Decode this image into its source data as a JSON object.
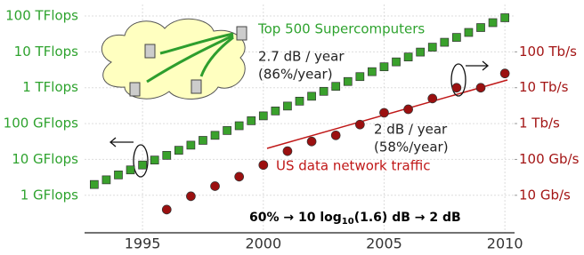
{
  "chart_data": {
    "type": "scatter",
    "series": [
      {
        "name": "Top 500 Supercomputers",
        "color": "#3aa12c",
        "x": [
          1993,
          1993.5,
          1994,
          1994.5,
          1995,
          1995.5,
          1996,
          1996.5,
          1997,
          1997.5,
          1998,
          1998.5,
          1999,
          1999.5,
          2000,
          2000.5,
          2001,
          2001.5,
          2002,
          2002.5,
          2003,
          2003.5,
          2004,
          2004.5,
          2005,
          2005.5,
          2006,
          2006.5,
          2007,
          2007.5,
          2008,
          2008.5,
          2009,
          2009.5,
          2010
        ],
        "values": [
          2.0,
          2.7,
          3.7,
          5.1,
          7.0,
          9.6,
          13,
          18,
          25,
          34,
          47,
          64,
          87,
          120,
          164,
          225,
          308,
          422,
          578,
          793,
          1090,
          1490,
          2040,
          2800,
          3830,
          5250,
          7190,
          9860,
          13500,
          18500,
          25300,
          34800,
          47600,
          65200,
          89300
        ]
      },
      {
        "name": "US data network traffic",
        "color": "#9b1010",
        "axis": "y2",
        "x": [
          1996,
          1997,
          1998,
          1999,
          2000,
          2001,
          2002,
          2003,
          2004,
          2005,
          2006,
          2007,
          2008,
          2009,
          2010
        ],
        "values": [
          4,
          9.4,
          18,
          33,
          70,
          170,
          316,
          470,
          940,
          2000,
          2500,
          5000,
          10000,
          10000,
          25000
        ]
      }
    ],
    "xlim": [
      1992.6,
      2010.4
    ],
    "xticks": [
      1995,
      2000,
      2005,
      2010
    ],
    "ylim": [
      0.09,
      210000
    ],
    "log_y": true,
    "yticks": [
      {
        "value": 1,
        "label": "1 GFlops"
      },
      {
        "value": 10,
        "label": "10 GFlops"
      },
      {
        "value": 100,
        "label": "100 GFlops"
      },
      {
        "value": 1000,
        "label": "1 TFlops"
      },
      {
        "value": 10000,
        "label": "10 TFlops"
      },
      {
        "value": 100000,
        "label": "100 TFlops"
      }
    ],
    "y2lim": [
      0.9,
      2100000
    ],
    "y2ticks": [
      {
        "value": 10,
        "label": "10 Gb/s"
      },
      {
        "value": 100,
        "label": "100 Gb/s"
      },
      {
        "value": 1000,
        "label": "1 Tb/s"
      },
      {
        "value": 10000,
        "label": "10 Tb/s"
      },
      {
        "value": 100000,
        "label": "100 Tb/s"
      }
    ],
    "grid": true,
    "annotations": {
      "flops_rate": "2.7 dB / year",
      "flops_pct": "(86%/year)",
      "traffic_rate": "2 dB / year",
      "traffic_pct": "(58%/year)",
      "formula": [
        "60% → 10 log",
        "10",
        "(1.6) dB → 2 dB"
      ]
    }
  }
}
